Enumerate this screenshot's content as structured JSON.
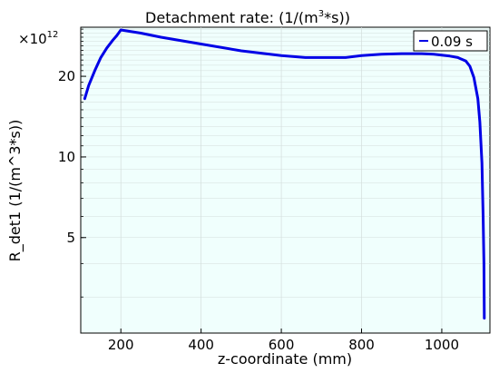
{
  "chart_data": {
    "type": "line",
    "title_main": "Detachment rate:  (1/(m",
    "title_sup": "3",
    "title_end": "*s))",
    "xlabel": "z-coordinate (mm)",
    "ylabel": "R_det1 (1/(m^3*s))",
    "y_multiplier_base": "×10",
    "y_multiplier_exp": "12",
    "y_scale": "log",
    "xlim": [
      100,
      1120
    ],
    "ylim": [
      2.2,
      30.5
    ],
    "x_ticks": [
      200,
      400,
      600,
      800,
      1000
    ],
    "y_ticks": [
      5,
      10,
      20
    ],
    "grid": true,
    "legend_position": "top-right",
    "colors": {
      "series": "#0000e6",
      "plot_bg": "#f0fffd",
      "grid": "#d3dedc"
    },
    "series": [
      {
        "name": "0.09 s",
        "x": [
          110,
          120,
          135,
          150,
          165,
          180,
          190,
          200,
          250,
          300,
          400,
          500,
          600,
          660,
          700,
          760,
          800,
          850,
          900,
          950,
          980,
          1000,
          1020,
          1040,
          1060,
          1070,
          1080,
          1090,
          1095,
          1100,
          1103,
          1105,
          1106
        ],
        "y": [
          16.5,
          18.5,
          21.0,
          23.5,
          25.5,
          27.3,
          28.4,
          29.8,
          29.0,
          28.0,
          26.4,
          24.9,
          23.9,
          23.5,
          23.5,
          23.5,
          23.9,
          24.2,
          24.3,
          24.3,
          24.2,
          24.0,
          23.8,
          23.5,
          22.8,
          21.8,
          19.8,
          16.5,
          13.5,
          9.5,
          6.0,
          4.0,
          2.5
        ]
      }
    ]
  }
}
